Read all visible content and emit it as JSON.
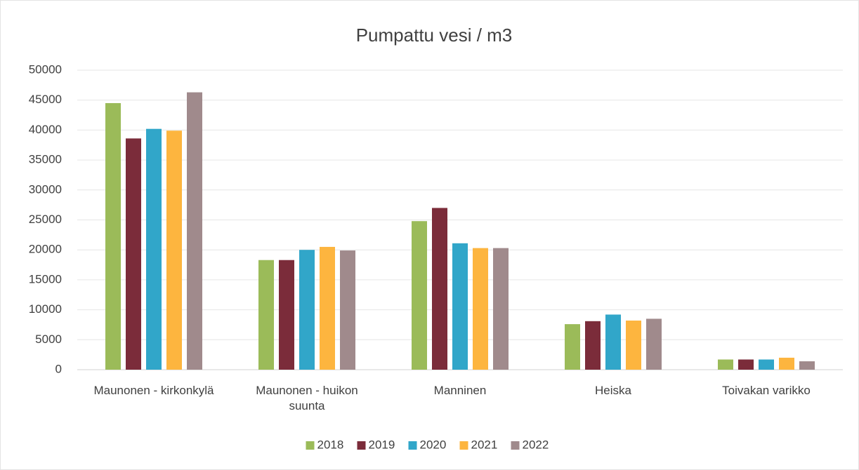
{
  "chart_data": {
    "type": "bar",
    "title": "Pumpattu vesi / m3",
    "categories": [
      "Maunonen - kirkonkylä",
      "Maunonen - huikon suunta",
      "Manninen",
      "Heiska",
      "Toivakan varikko"
    ],
    "series": [
      {
        "name": "2018",
        "color": "#9bbb59",
        "values": [
          44500,
          18300,
          24800,
          7600,
          1700
        ]
      },
      {
        "name": "2019",
        "color": "#7b2c3a",
        "values": [
          38600,
          18300,
          27000,
          8100,
          1700
        ]
      },
      {
        "name": "2020",
        "color": "#31a6c9",
        "values": [
          40200,
          20000,
          21100,
          9200,
          1700
        ]
      },
      {
        "name": "2021",
        "color": "#fdb53f",
        "values": [
          39900,
          20500,
          20300,
          8200,
          2000
        ]
      },
      {
        "name": "2022",
        "color": "#a08a8c",
        "values": [
          46300,
          19900,
          20300,
          8500,
          1400
        ]
      }
    ],
    "ylim": [
      0,
      50000
    ],
    "yticks": [
      0,
      5000,
      10000,
      15000,
      20000,
      25000,
      30000,
      35000,
      40000,
      45000,
      50000
    ],
    "grid": true,
    "legend": "bottom"
  }
}
